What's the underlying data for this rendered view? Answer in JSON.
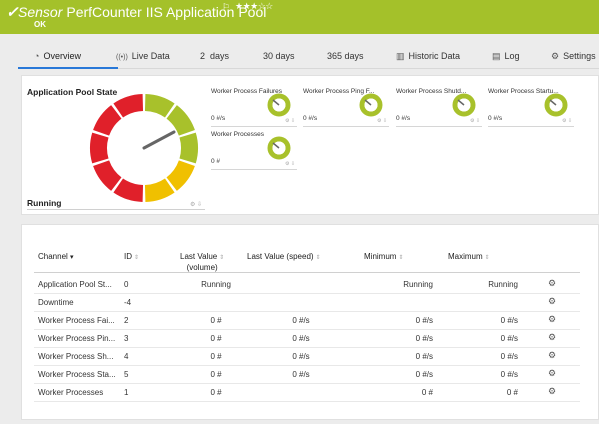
{
  "header": {
    "check": "✓",
    "sensor_word": "Sensor",
    "title": "PerfCounter IIS Application Pool",
    "flag": "⚐",
    "stars": "★★★☆☆",
    "status": "OK"
  },
  "tabs": [
    {
      "icon": "◔",
      "label": "Overview",
      "icon_name": "overview-icon"
    },
    {
      "icon": "((•))",
      "label": "Live Data",
      "icon_name": "live-data-icon"
    },
    {
      "icon": "",
      "label": "2  days"
    },
    {
      "icon": "",
      "label": "30 days"
    },
    {
      "icon": "",
      "label": "365 days"
    },
    {
      "icon": "▥",
      "label": "Historic Data",
      "icon_name": "historic-data-icon"
    },
    {
      "icon": "▤",
      "label": "Log",
      "icon_name": "log-icon"
    },
    {
      "icon": "⚙",
      "label": "Settings",
      "icon_name": "settings-icon"
    }
  ],
  "overview": {
    "pool_title": "Application Pool State",
    "state_value": "Running",
    "mini_gauges": [
      {
        "title": "Worker Process Failures",
        "value": "0 #/s"
      },
      {
        "title": "Worker Process Ping F...",
        "value": "0 #/s"
      },
      {
        "title": "Worker Process Shutd...",
        "value": "0 #/s"
      },
      {
        "title": "Worker Process Startu...",
        "value": "0 #/s"
      },
      {
        "title": "Worker Processes",
        "value": "0 #"
      }
    ],
    "colors": {
      "green": "#a8c12b",
      "yellow": "#f0c000",
      "red": "#e0202a",
      "needle": "#666666"
    }
  },
  "table": {
    "headers": {
      "channel": "Channel",
      "id": "ID",
      "last_value_1": "Last Value",
      "last_value_2": "(volume)",
      "last_speed": "Last Value (speed)",
      "minimum": "Minimum",
      "maximum": "Maximum"
    },
    "rows": [
      {
        "channel": "Application Pool St...",
        "id": "0",
        "last": "Running",
        "speed": "",
        "min": "Running",
        "max": "Running"
      },
      {
        "channel": "Downtime",
        "id": "-4",
        "last": "",
        "speed": "",
        "min": "",
        "max": ""
      },
      {
        "channel": "Worker Process Fai...",
        "id": "2",
        "last": "0 #",
        "speed": "0 #/s",
        "min": "0 #/s",
        "max": "0 #/s"
      },
      {
        "channel": "Worker Process Pin...",
        "id": "3",
        "last": "0 #",
        "speed": "0 #/s",
        "min": "0 #/s",
        "max": "0 #/s"
      },
      {
        "channel": "Worker Process Sh...",
        "id": "4",
        "last": "0 #",
        "speed": "0 #/s",
        "min": "0 #/s",
        "max": "0 #/s"
      },
      {
        "channel": "Worker Process Sta...",
        "id": "5",
        "last": "0 #",
        "speed": "0 #/s",
        "min": "0 #/s",
        "max": "0 #/s"
      },
      {
        "channel": "Worker Processes",
        "id": "1",
        "last": "0 #",
        "speed": "",
        "min": "0 #",
        "max": "0 #"
      }
    ]
  }
}
